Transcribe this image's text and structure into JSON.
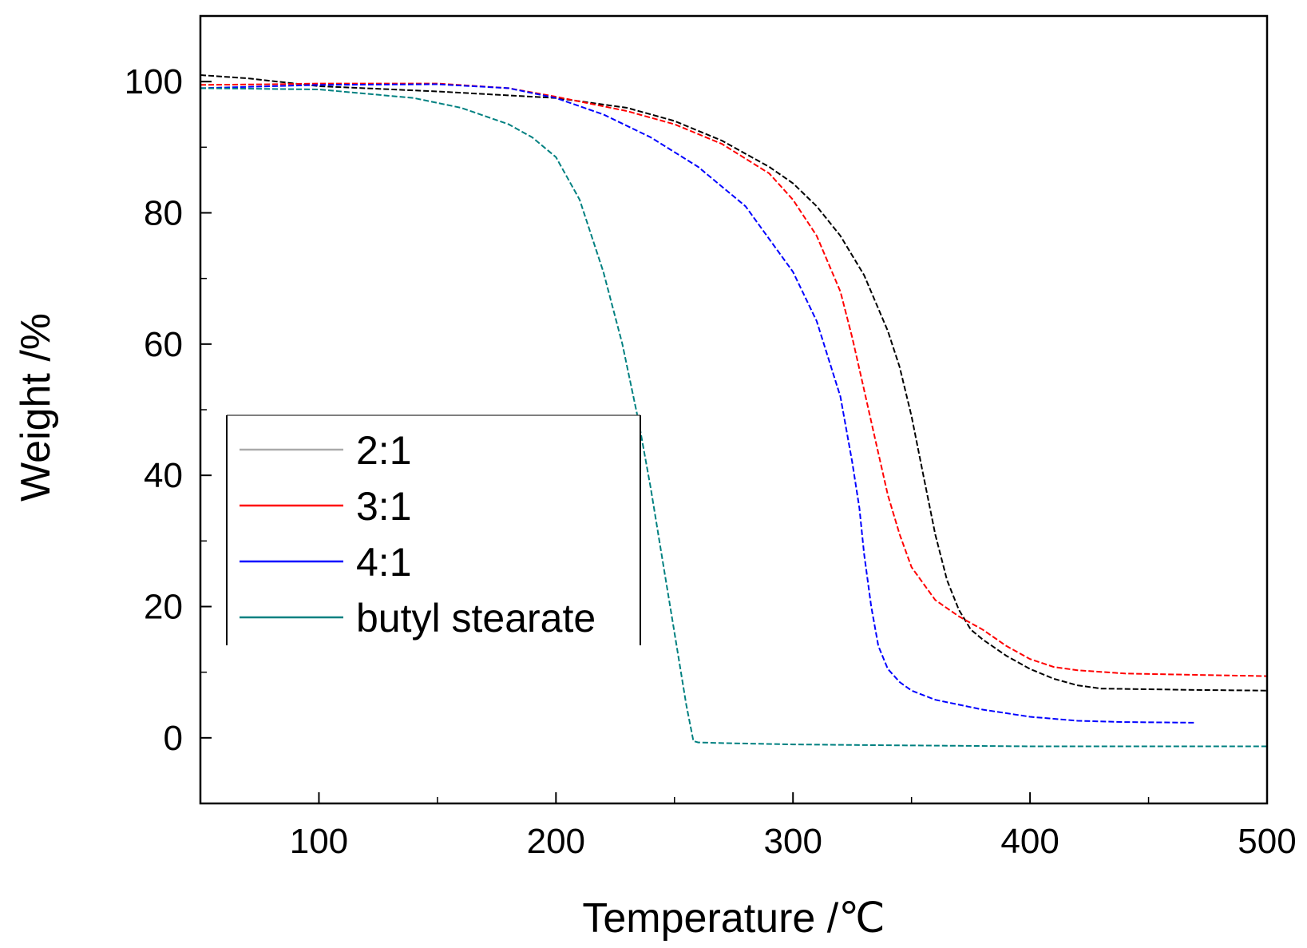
{
  "chart_data": {
    "type": "line",
    "title": "",
    "xlabel": "Temperature /℃",
    "ylabel": "Weight /%",
    "xlim": [
      50,
      500
    ],
    "ylim": [
      -10,
      110
    ],
    "xticks": [
      100,
      200,
      300,
      400,
      500
    ],
    "yticks": [
      0,
      20,
      40,
      60,
      80,
      100
    ],
    "grid": false,
    "legend_position": "center-left",
    "series": [
      {
        "name": "2:1",
        "color": "#000000",
        "x": [
          50,
          70,
          100,
          150,
          200,
          230,
          250,
          270,
          290,
          300,
          310,
          320,
          330,
          340,
          345,
          350,
          355,
          360,
          365,
          370,
          375,
          380,
          390,
          400,
          410,
          420,
          430,
          450,
          470,
          500
        ],
        "y": [
          101,
          100.5,
          99.3,
          98.5,
          97.5,
          96,
          94,
          91,
          87,
          84.5,
          81,
          76.5,
          70.5,
          62,
          56.5,
          49,
          40,
          31,
          24,
          19.5,
          16.5,
          15,
          12.5,
          10.5,
          9,
          8,
          7.5,
          7.4,
          7.3,
          7.2
        ]
      },
      {
        "name": "3:1",
        "color": "#ff0000",
        "x": [
          50,
          80,
          100,
          150,
          180,
          200,
          230,
          250,
          270,
          290,
          300,
          310,
          320,
          325,
          330,
          335,
          340,
          345,
          350,
          360,
          370,
          380,
          390,
          400,
          410,
          420,
          440,
          470,
          500
        ],
        "y": [
          99.5,
          99.6,
          99.7,
          99.7,
          99,
          97.7,
          95.5,
          93.5,
          90.5,
          86,
          82,
          76.5,
          68,
          61,
          53,
          45,
          37,
          31,
          26,
          21,
          18.5,
          16.5,
          14,
          12,
          10.8,
          10.3,
          9.8,
          9.6,
          9.4
        ]
      },
      {
        "name": "4:1",
        "color": "#0000ff",
        "x": [
          50,
          100,
          150,
          180,
          200,
          220,
          240,
          260,
          280,
          300,
          310,
          320,
          325,
          328,
          330,
          333,
          336,
          340,
          345,
          350,
          360,
          380,
          400,
          420,
          440,
          470
        ],
        "y": [
          99,
          99.5,
          99.6,
          99,
          97.5,
          95,
          91.5,
          87,
          81,
          71,
          63.5,
          52,
          42,
          35,
          28,
          20,
          14,
          10.5,
          8.5,
          7.2,
          5.8,
          4.3,
          3.2,
          2.6,
          2.4,
          2.3
        ]
      },
      {
        "name": "butyl stearate",
        "color": "#008080",
        "x": [
          50,
          100,
          140,
          160,
          180,
          190,
          200,
          210,
          220,
          228,
          235,
          240,
          245,
          250,
          255,
          258,
          260,
          270,
          300,
          330,
          400,
          500
        ],
        "y": [
          99,
          98.8,
          97.5,
          96,
          93.5,
          91.5,
          88.5,
          82,
          71,
          60,
          48,
          38,
          27,
          16,
          5,
          -0.5,
          -0.7,
          -0.8,
          -1.0,
          -1.1,
          -1.3,
          -1.3
        ]
      }
    ]
  }
}
